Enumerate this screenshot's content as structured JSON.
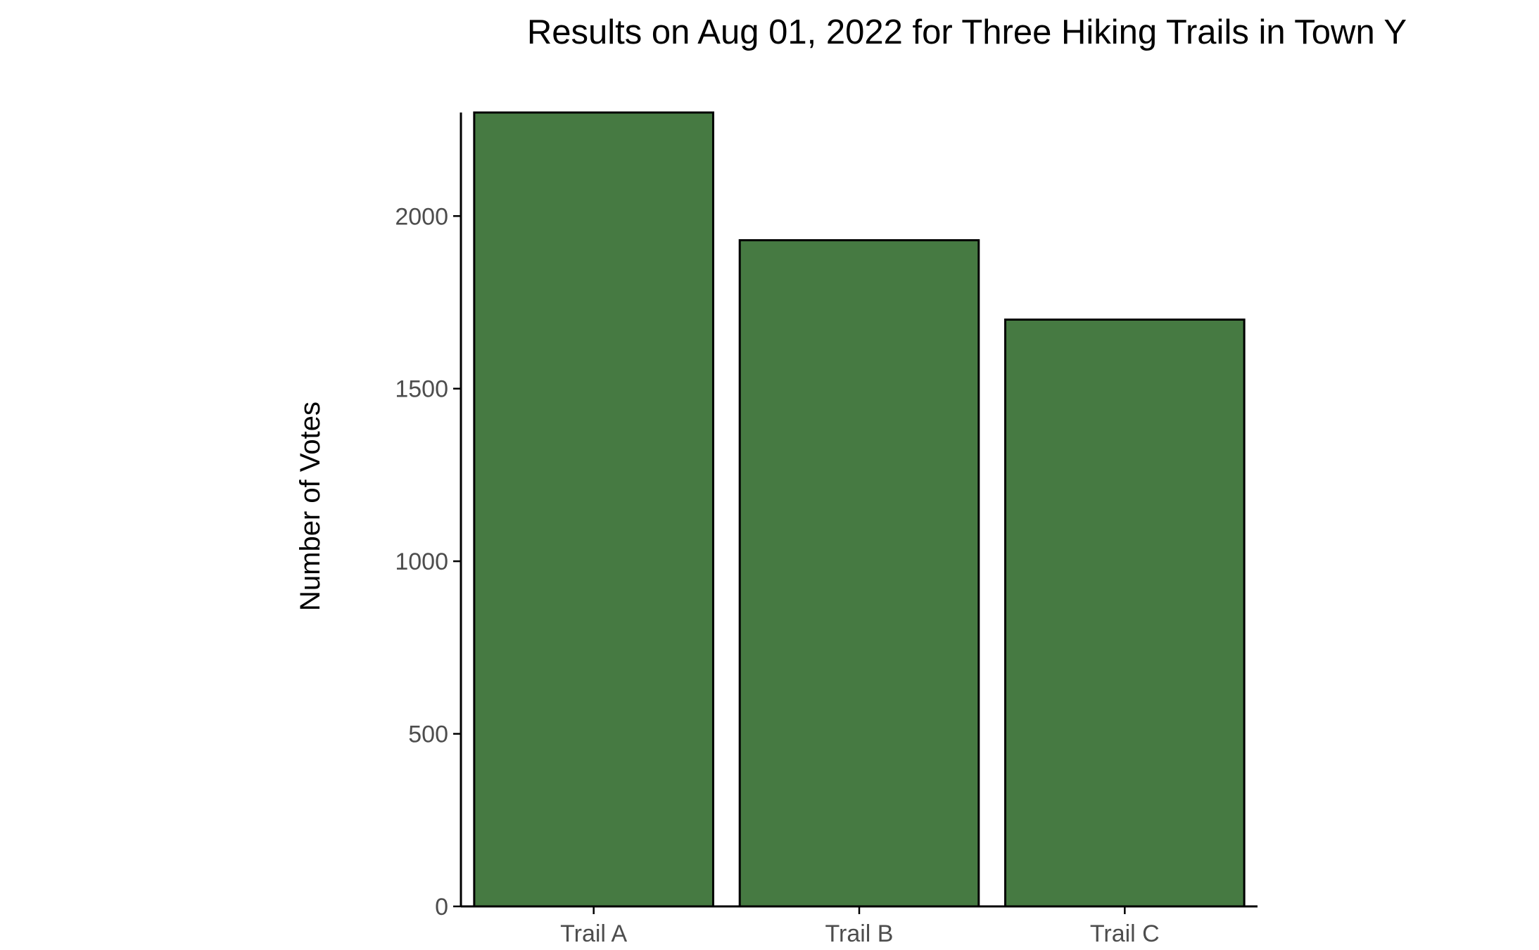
{
  "chart_data": {
    "type": "bar",
    "title": "Results on Aug 01, 2022 for Three Hiking Trails in Town Y",
    "xlabel": "",
    "ylabel": "Number of Votes",
    "categories": [
      "Trail A",
      "Trail B",
      "Trail C"
    ],
    "values": [
      2300,
      1930,
      1700
    ],
    "ylim": [
      0,
      2300
    ],
    "yticks": [
      0,
      500,
      1000,
      1500,
      2000
    ],
    "ytick_labels": [
      "0",
      "500",
      "1000",
      "1500",
      "2000"
    ],
    "grid": false,
    "legend": "none",
    "colors": {
      "bar_fill": "#467A42",
      "bar_stroke": "#000000",
      "axis": "#000000",
      "tick_text": "#4d4d4d"
    }
  }
}
